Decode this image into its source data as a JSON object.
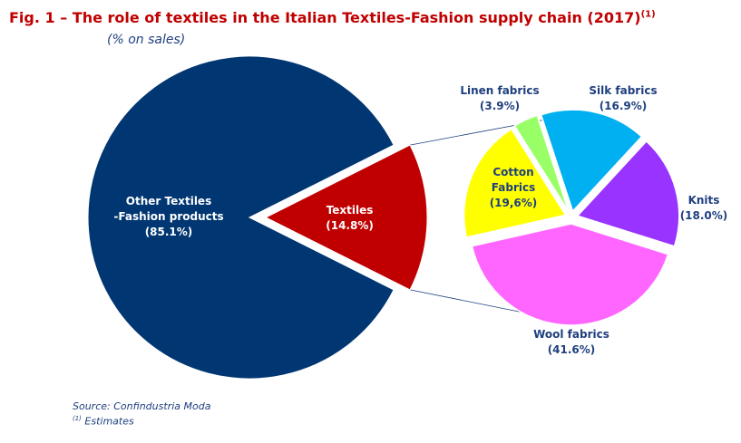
{
  "chart_data": [
    {
      "type": "pie",
      "title": "Fig. 1 – The role of textiles in the Italian Textiles-Fashion supply chain (2017)",
      "title_sup": "(1)",
      "subtitle": "(% on sales)",
      "slices": [
        {
          "label": "Other Textiles -Fashion products",
          "value": 85.1,
          "display": "(85.1%)",
          "color": "#003671",
          "label_color": "#ffffff"
        },
        {
          "label": "Textiles",
          "value": 14.8,
          "display": "(14.8%)",
          "color": "#c00000",
          "label_color": "#ffffff",
          "exploded": true
        }
      ]
    },
    {
      "type": "pie",
      "parent": "Textiles",
      "slices": [
        {
          "label": "Wool fabrics",
          "value": 41.6,
          "display": "(41.6%)",
          "color": "#ff66ff",
          "label_color": "#1f3f7f"
        },
        {
          "label": "Cotton Fabrics",
          "value": 19.6,
          "display": "(19,6%)",
          "color": "#ffff00",
          "label_color": "#1f3f7f"
        },
        {
          "label": "Linen fabrics",
          "value": 3.9,
          "display": "(3.9%)",
          "color": "#99ff66",
          "label_color": "#1f3f7f"
        },
        {
          "label": "Silk fabrics",
          "value": 16.9,
          "display": "(16.9%)",
          "color": "#00b0f0",
          "label_color": "#1f3f7f"
        },
        {
          "label": "Knits",
          "value": 18.0,
          "display": "(18.0%)",
          "color": "#9933ff",
          "label_color": "#1f3f7f"
        }
      ]
    }
  ],
  "footer": {
    "source": "Source: Confindustria Moda",
    "note_sup": "(1)",
    "note": " Estimates"
  }
}
